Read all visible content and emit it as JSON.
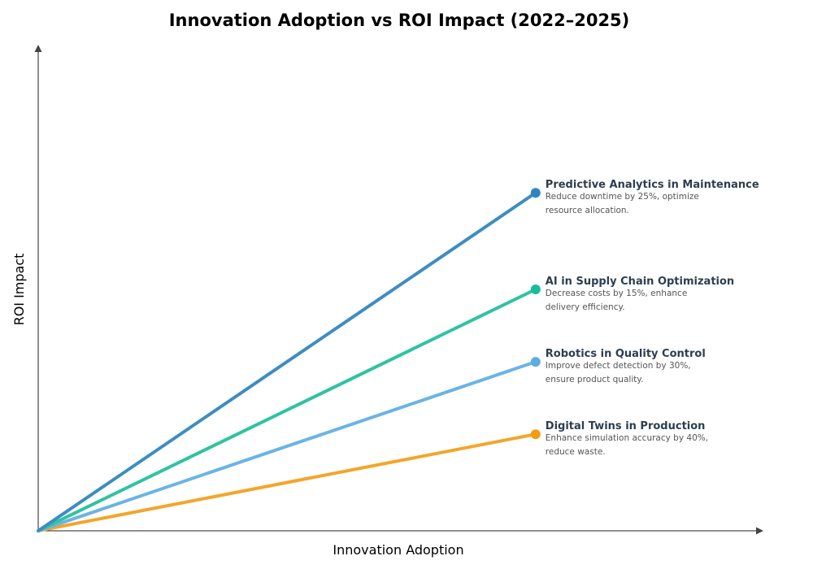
{
  "chart_data": {
    "type": "line",
    "title": "Innovation Adoption vs ROI Impact (2022–2025)",
    "xlabel": "Innovation Adoption",
    "ylabel": "ROI Impact",
    "xlim": [
      0,
      1
    ],
    "ylim": [
      0,
      1
    ],
    "grid": false,
    "ticks": false,
    "series": [
      {
        "name": "Predictive Analytics in Maintenance",
        "description": [
          "Reduce downtime by 25%, optimize",
          "resource allocation."
        ],
        "x": [
          0,
          0.7
        ],
        "y": [
          0,
          0.7
        ],
        "color": "#2e86c1",
        "line_color": "#3d8dc2"
      },
      {
        "name": "AI in Supply Chain Optimization",
        "description": [
          "Decrease costs by 15%, enhance",
          "delivery efficiency."
        ],
        "x": [
          0,
          0.7
        ],
        "y": [
          0,
          0.5
        ],
        "color": "#1abc9c",
        "line_color": "#2fc3a0"
      },
      {
        "name": "Robotics in Quality Control",
        "description": [
          "Improve defect detection by 30%,",
          "ensure product quality."
        ],
        "x": [
          0,
          0.7
        ],
        "y": [
          0,
          0.35
        ],
        "color": "#5dade2",
        "line_color": "#6ab4e4"
      },
      {
        "name": "Digital Twins in Production",
        "description": [
          "Enhance simulation accuracy by 40%,",
          "reduce waste."
        ],
        "x": [
          0,
          0.7
        ],
        "y": [
          0,
          0.2
        ],
        "color": "#f39c12",
        "line_color": "#f4a52a"
      }
    ]
  }
}
